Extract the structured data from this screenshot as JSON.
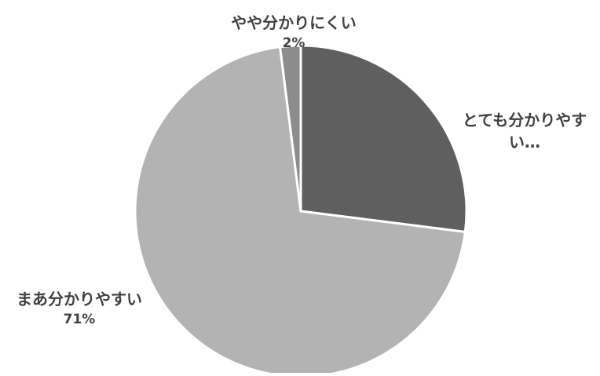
{
  "chart_data": {
    "type": "pie",
    "title": "",
    "slices": [
      {
        "label": "とても分かりやすい…",
        "label_lines": [
          "とても分かりやす",
          "い…"
        ],
        "value": 27,
        "value_label": "",
        "color": "#5f5f5f"
      },
      {
        "label": "まあ分かりやすい",
        "label_lines": [
          "まあ分かりやすい"
        ],
        "value": 71,
        "value_label": "71%",
        "color": "#b3b3b3"
      },
      {
        "label": "やや分かりにくい",
        "label_lines": [
          "やや分かりにくい"
        ],
        "value": 2,
        "value_label": "2%",
        "color": "#8c8c8c"
      }
    ],
    "start_angle_deg": 0,
    "direction": "clockwise",
    "legend": "none"
  }
}
